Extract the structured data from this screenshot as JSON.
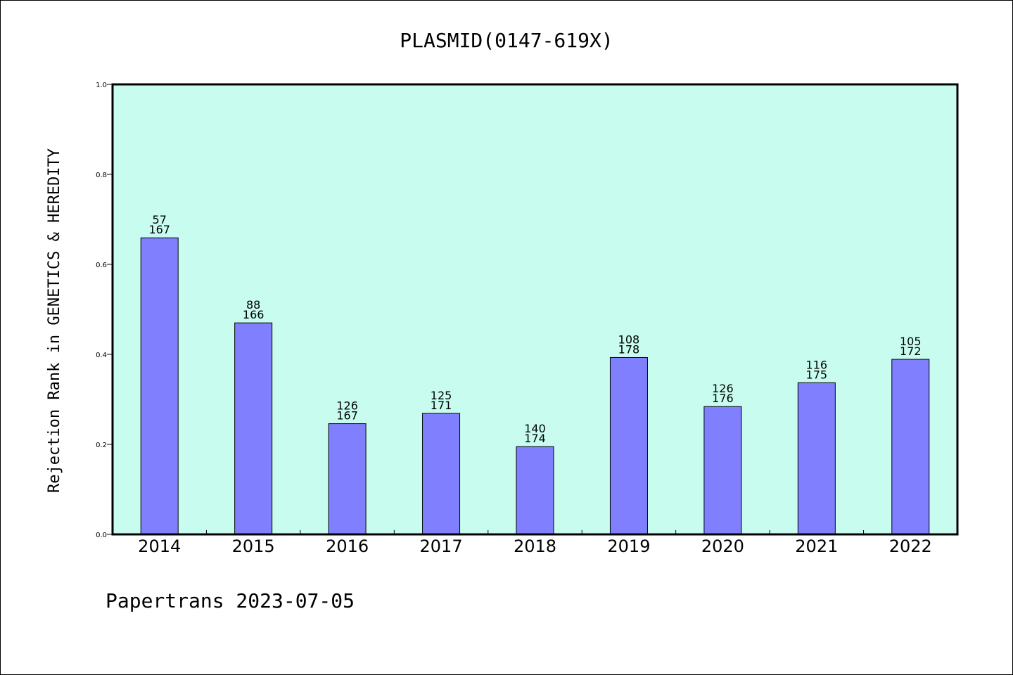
{
  "chart_data": {
    "type": "bar",
    "title": "PLASMID(0147-619X)",
    "xlabel": "",
    "ylabel": "Rejection Rank in GENETICS & HEREDITY",
    "categories": [
      "2014",
      "2015",
      "2016",
      "2017",
      "2018",
      "2019",
      "2020",
      "2021",
      "2022"
    ],
    "values": [
      0.659,
      0.47,
      0.246,
      0.269,
      0.195,
      0.393,
      0.284,
      0.337,
      0.389
    ],
    "annotations": [
      {
        "top": "57",
        "bottom": "167"
      },
      {
        "top": "88",
        "bottom": "166"
      },
      {
        "top": "126",
        "bottom": "167"
      },
      {
        "top": "125",
        "bottom": "171"
      },
      {
        "top": "140",
        "bottom": "174"
      },
      {
        "top": "108",
        "bottom": "178"
      },
      {
        "top": "126",
        "bottom": "176"
      },
      {
        "top": "116",
        "bottom": "175"
      },
      {
        "top": "105",
        "bottom": "172"
      }
    ],
    "ylim": [
      0.0,
      1.0
    ],
    "yticks": [
      "0.0",
      "0.2",
      "0.4",
      "0.6",
      "0.8",
      "1.0"
    ],
    "grid": false,
    "colors": {
      "plot_background": "#c8fcee",
      "bar_fill": "#8080ff",
      "bar_edge": "#000000"
    }
  },
  "footer": "Papertrans 2023-07-05"
}
